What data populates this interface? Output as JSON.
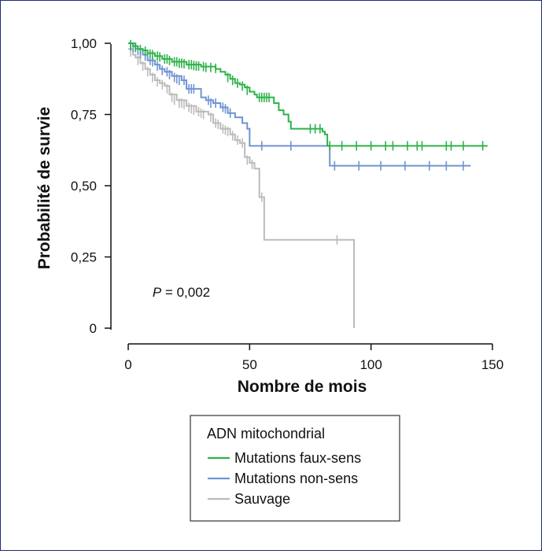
{
  "chart_data": {
    "type": "line",
    "subtype": "kaplan-meier",
    "title": "",
    "xlabel": "Nombre de mois",
    "ylabel": "Probabilité de survie",
    "xlim": [
      0,
      150
    ],
    "ylim": [
      0,
      1
    ],
    "x_ticks": [
      0,
      50,
      100,
      150
    ],
    "x_tick_labels": [
      "0",
      "50",
      "100",
      "150"
    ],
    "y_ticks": [
      0,
      0.25,
      0.5,
      0.75,
      1.0
    ],
    "y_tick_labels": [
      "0",
      "0,25",
      "0,50",
      "0,75",
      "1,00"
    ],
    "grid": false,
    "annotation": {
      "p_symbol": "P",
      "p_rest": " = 0,002",
      "x": 10,
      "y": 0.11
    },
    "legend": {
      "title": "ADN mitochondrial",
      "placement": "below",
      "entries": [
        "Mutations faux-sens",
        "Mutations non-sens",
        "Sauvage"
      ]
    },
    "series": [
      {
        "name": "Mutations faux-sens",
        "color": "#2db34a",
        "steps": [
          [
            0,
            1.0
          ],
          [
            2,
            0.99
          ],
          [
            4,
            0.98
          ],
          [
            6,
            0.975
          ],
          [
            8,
            0.965
          ],
          [
            11,
            0.955
          ],
          [
            14,
            0.945
          ],
          [
            18,
            0.935
          ],
          [
            24,
            0.925
          ],
          [
            30,
            0.918
          ],
          [
            36,
            0.91
          ],
          [
            38,
            0.9
          ],
          [
            40,
            0.89
          ],
          [
            42,
            0.875
          ],
          [
            44,
            0.86
          ],
          [
            46,
            0.855
          ],
          [
            48,
            0.845
          ],
          [
            50,
            0.83
          ],
          [
            52,
            0.82
          ],
          [
            53,
            0.81
          ],
          [
            60,
            0.79
          ],
          [
            62,
            0.765
          ],
          [
            64,
            0.75
          ],
          [
            66,
            0.725
          ],
          [
            67,
            0.7
          ],
          [
            80,
            0.69
          ],
          [
            81,
            0.68
          ],
          [
            82,
            0.64
          ],
          [
            148,
            0.64
          ]
        ],
        "censored": [
          [
            1,
            0.995
          ],
          [
            3,
            0.985
          ],
          [
            5,
            0.978
          ],
          [
            7,
            0.972
          ],
          [
            9,
            0.962
          ],
          [
            10,
            0.96
          ],
          [
            12,
            0.955
          ],
          [
            13,
            0.952
          ],
          [
            15,
            0.945
          ],
          [
            16,
            0.945
          ],
          [
            17,
            0.94
          ],
          [
            19,
            0.935
          ],
          [
            20,
            0.935
          ],
          [
            21,
            0.93
          ],
          [
            22,
            0.93
          ],
          [
            23,
            0.928
          ],
          [
            25,
            0.925
          ],
          [
            26,
            0.925
          ],
          [
            27,
            0.922
          ],
          [
            28,
            0.92
          ],
          [
            29,
            0.92
          ],
          [
            31,
            0.918
          ],
          [
            32,
            0.915
          ],
          [
            34,
            0.915
          ],
          [
            36,
            0.912
          ],
          [
            41,
            0.88
          ],
          [
            43,
            0.87
          ],
          [
            45,
            0.86
          ],
          [
            47,
            0.85
          ],
          [
            49,
            0.835
          ],
          [
            54,
            0.81
          ],
          [
            55,
            0.81
          ],
          [
            56,
            0.81
          ],
          [
            57,
            0.81
          ],
          [
            58,
            0.81
          ],
          [
            75,
            0.7
          ],
          [
            77,
            0.7
          ],
          [
            79,
            0.7
          ],
          [
            83,
            0.64
          ],
          [
            88,
            0.64
          ],
          [
            94,
            0.64
          ],
          [
            100,
            0.64
          ],
          [
            106,
            0.64
          ],
          [
            109,
            0.64
          ],
          [
            115,
            0.64
          ],
          [
            119,
            0.64
          ],
          [
            121,
            0.64
          ],
          [
            131,
            0.64
          ],
          [
            133,
            0.64
          ],
          [
            138,
            0.64
          ],
          [
            146,
            0.64
          ]
        ]
      },
      {
        "name": "Mutations non-sens",
        "color": "#6f94d2",
        "steps": [
          [
            0,
            1.0
          ],
          [
            3,
            0.98
          ],
          [
            6,
            0.96
          ],
          [
            8,
            0.94
          ],
          [
            11,
            0.925
          ],
          [
            13,
            0.91
          ],
          [
            15,
            0.9
          ],
          [
            18,
            0.885
          ],
          [
            22,
            0.87
          ],
          [
            24,
            0.84
          ],
          [
            30,
            0.81
          ],
          [
            32,
            0.8
          ],
          [
            35,
            0.79
          ],
          [
            38,
            0.775
          ],
          [
            41,
            0.755
          ],
          [
            44,
            0.74
          ],
          [
            47,
            0.72
          ],
          [
            49,
            0.7
          ],
          [
            50,
            0.64
          ],
          [
            83,
            0.57
          ],
          [
            141,
            0.57
          ]
        ],
        "censored": [
          [
            1,
            0.99
          ],
          [
            2,
            0.985
          ],
          [
            4,
            0.975
          ],
          [
            5,
            0.965
          ],
          [
            7,
            0.955
          ],
          [
            9,
            0.94
          ],
          [
            10,
            0.935
          ],
          [
            12,
            0.92
          ],
          [
            14,
            0.905
          ],
          [
            16,
            0.9
          ],
          [
            17,
            0.89
          ],
          [
            19,
            0.88
          ],
          [
            20,
            0.875
          ],
          [
            21,
            0.87
          ],
          [
            23,
            0.87
          ],
          [
            25,
            0.84
          ],
          [
            26,
            0.84
          ],
          [
            27,
            0.84
          ],
          [
            33,
            0.8
          ],
          [
            34,
            0.79
          ],
          [
            36,
            0.79
          ],
          [
            39,
            0.775
          ],
          [
            40,
            0.77
          ],
          [
            42,
            0.755
          ],
          [
            55,
            0.64
          ],
          [
            67,
            0.64
          ],
          [
            85,
            0.57
          ],
          [
            95,
            0.57
          ],
          [
            104,
            0.57
          ],
          [
            114,
            0.57
          ],
          [
            124,
            0.57
          ],
          [
            131,
            0.57
          ],
          [
            138,
            0.57
          ]
        ]
      },
      {
        "name": "Sauvage",
        "color": "#bbbbbb",
        "steps": [
          [
            0,
            0.98
          ],
          [
            2,
            0.96
          ],
          [
            3,
            0.95
          ],
          [
            5,
            0.93
          ],
          [
            7,
            0.91
          ],
          [
            9,
            0.89
          ],
          [
            11,
            0.87
          ],
          [
            13,
            0.86
          ],
          [
            15,
            0.85
          ],
          [
            17,
            0.82
          ],
          [
            20,
            0.8
          ],
          [
            24,
            0.78
          ],
          [
            28,
            0.76
          ],
          [
            33,
            0.75
          ],
          [
            35,
            0.72
          ],
          [
            38,
            0.7
          ],
          [
            42,
            0.68
          ],
          [
            44,
            0.66
          ],
          [
            46,
            0.65
          ],
          [
            48,
            0.6
          ],
          [
            50,
            0.58
          ],
          [
            52,
            0.56
          ],
          [
            54,
            0.46
          ],
          [
            56,
            0.31
          ],
          [
            93,
            0.0
          ]
        ],
        "censored": [
          [
            1,
            0.97
          ],
          [
            4,
            0.94
          ],
          [
            6,
            0.92
          ],
          [
            8,
            0.9
          ],
          [
            10,
            0.88
          ],
          [
            12,
            0.865
          ],
          [
            14,
            0.855
          ],
          [
            16,
            0.84
          ],
          [
            18,
            0.81
          ],
          [
            19,
            0.8
          ],
          [
            21,
            0.79
          ],
          [
            22,
            0.79
          ],
          [
            23,
            0.785
          ],
          [
            25,
            0.775
          ],
          [
            26,
            0.77
          ],
          [
            27,
            0.765
          ],
          [
            29,
            0.76
          ],
          [
            30,
            0.755
          ],
          [
            31,
            0.75
          ],
          [
            34,
            0.74
          ],
          [
            36,
            0.72
          ],
          [
            37,
            0.715
          ],
          [
            39,
            0.7
          ],
          [
            40,
            0.695
          ],
          [
            41,
            0.69
          ],
          [
            43,
            0.675
          ],
          [
            45,
            0.66
          ],
          [
            47,
            0.65
          ],
          [
            49,
            0.59
          ],
          [
            51,
            0.575
          ],
          [
            55,
            0.46
          ],
          [
            86,
            0.31
          ]
        ]
      }
    ]
  }
}
